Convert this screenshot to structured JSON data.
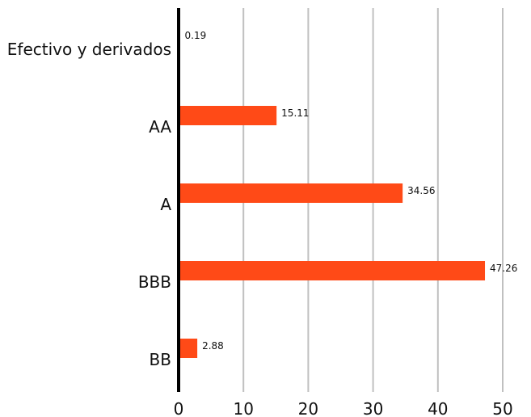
{
  "chart_data": {
    "type": "bar",
    "orientation": "horizontal",
    "categories": [
      "Efectivo y derivados",
      "AA",
      "A",
      "BBB",
      "BB"
    ],
    "values": [
      0.19,
      15.11,
      34.56,
      47.26,
      2.88
    ],
    "data_labels": [
      "0.19",
      "15.11",
      "34.56",
      "47.26",
      "2.88"
    ],
    "x_ticks": [
      "0",
      "10",
      "20",
      "30",
      "40",
      "50"
    ],
    "xlim": [
      0,
      50
    ],
    "grid": true,
    "legend": "none",
    "title": "",
    "xlabel": "",
    "ylabel": "",
    "colors": {
      "bar": "#FF4A17",
      "grid": "#c0c0c0",
      "axis": "#000000"
    }
  }
}
